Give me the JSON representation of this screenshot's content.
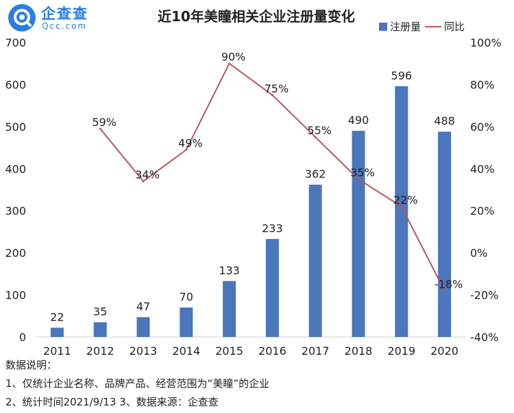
{
  "brand": {
    "name": "企查查",
    "sub": "Qcc.com",
    "color": "#2a7de1"
  },
  "chart_data": {
    "type": "bar",
    "title": "近10年美瞳相关企业注册量变化",
    "categories": [
      "2011",
      "2012",
      "2013",
      "2014",
      "2015",
      "2016",
      "2017",
      "2018",
      "2019",
      "2020"
    ],
    "series": [
      {
        "name": "注册量",
        "type": "bar",
        "axis": "left",
        "color": "#4a76bb",
        "values": [
          22,
          35,
          47,
          70,
          133,
          233,
          362,
          490,
          596,
          488
        ],
        "labels": [
          "22",
          "35",
          "47",
          "70",
          "133",
          "233",
          "362",
          "490",
          "596",
          "488"
        ]
      },
      {
        "name": "同比",
        "type": "line",
        "axis": "right",
        "color": "#b5575a",
        "values": [
          null,
          59,
          34,
          49,
          90,
          75,
          55,
          35,
          22,
          -18
        ],
        "labels": [
          "",
          "59%",
          "34%",
          "49%",
          "90%",
          "75%",
          "55%",
          "35%",
          "22%",
          "-18%"
        ]
      }
    ],
    "ylim": [
      0,
      700
    ],
    "yticks": [
      "0",
      "100",
      "200",
      "300",
      "400",
      "500",
      "600",
      "700"
    ],
    "y2lim": [
      -40,
      100
    ],
    "y2ticks": [
      "-40%",
      "-20%",
      "0%",
      "20%",
      "40%",
      "60%",
      "80%",
      "100%"
    ],
    "legend": "top-right",
    "grid": false
  },
  "notes": {
    "heading": "数据说明：",
    "line1": "1、仅统计企业名称、品牌产品、经营范围为“美瞳”的企业",
    "line2": "2、统计时间2021/9/13   3、数据来源：企查查"
  }
}
